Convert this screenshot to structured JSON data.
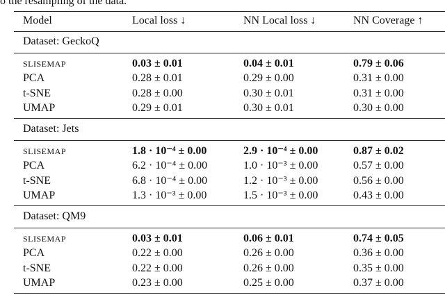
{
  "caption_fragment": "o the resampling of the data.",
  "table": {
    "header": [
      "Model",
      "Local loss ↓",
      "NN Local loss ↓",
      "NN Coverage ↑"
    ],
    "groups": [
      {
        "label": "Dataset: GeckoQ",
        "rows": [
          [
            "SLISEMAP",
            "0.03 ± 0.01",
            "0.04 ± 0.01",
            "0.79 ± 0.06"
          ],
          [
            "PCA",
            "0.28 ± 0.01",
            "0.29 ± 0.00",
            "0.31 ± 0.00"
          ],
          [
            "t-SNE",
            "0.28 ± 0.00",
            "0.30 ± 0.01",
            "0.31 ± 0.00"
          ],
          [
            "UMAP",
            "0.29 ± 0.01",
            "0.30 ± 0.01",
            "0.30 ± 0.00"
          ]
        ]
      },
      {
        "label": "Dataset: Jets",
        "rows": [
          [
            "SLISEMAP",
            "1.8 · 10⁻⁴ ± 0.00",
            "2.9 · 10⁻⁴ ± 0.00",
            "0.87 ± 0.02"
          ],
          [
            "PCA",
            "6.2 · 10⁻⁴ ± 0.00",
            "1.0 · 10⁻³ ± 0.00",
            "0.57 ± 0.00"
          ],
          [
            "t-SNE",
            "6.8 · 10⁻⁴ ± 0.00",
            "1.2 · 10⁻³ ± 0.00",
            "0.56 ± 0.00"
          ],
          [
            "UMAP",
            "1.3 · 10⁻³ ± 0.00",
            "1.5 · 10⁻³ ± 0.00",
            "0.43 ± 0.00"
          ]
        ]
      },
      {
        "label": "Dataset: QM9",
        "rows": [
          [
            "SLISEMAP",
            "0.03 ± 0.01",
            "0.06 ± 0.01",
            "0.74 ± 0.05"
          ],
          [
            "PCA",
            "0.22 ± 0.00",
            "0.26 ± 0.00",
            "0.36 ± 0.00"
          ],
          [
            "t-SNE",
            "0.22 ± 0.00",
            "0.26 ± 0.00",
            "0.35 ± 0.00"
          ],
          [
            "UMAP",
            "0.23 ± 0.00",
            "0.25 ± 0.00",
            "0.37 ± 0.00"
          ]
        ]
      }
    ]
  }
}
